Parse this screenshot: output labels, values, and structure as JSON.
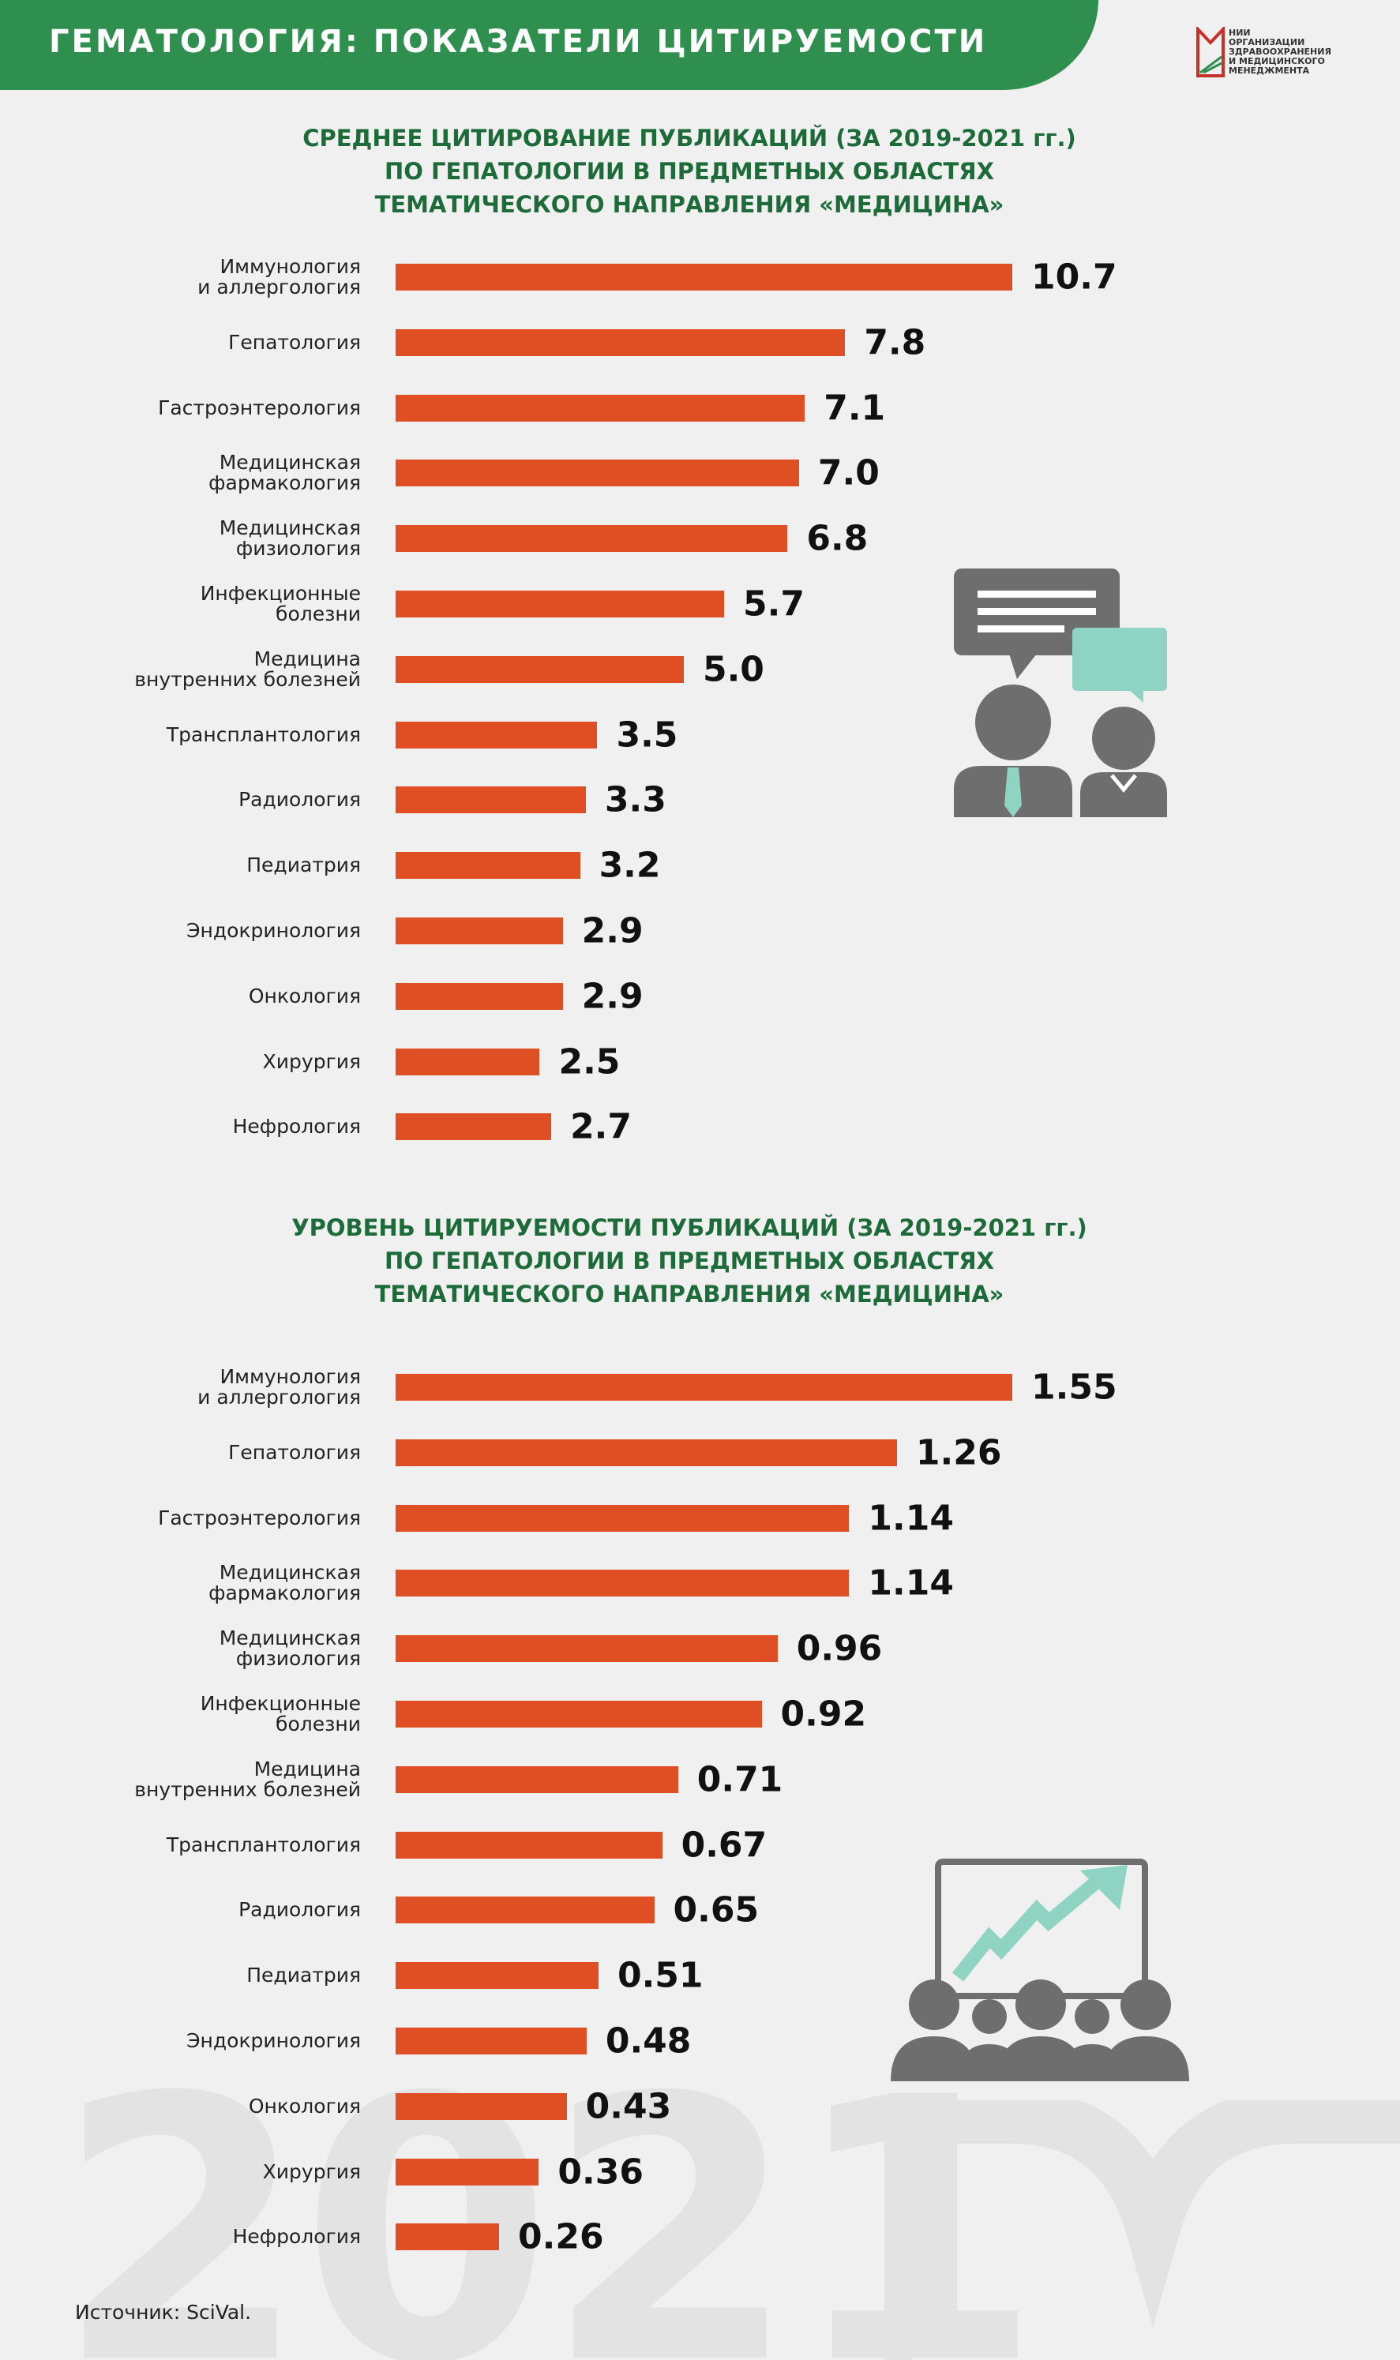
{
  "header": {
    "title": "ГЕМАТОЛОГИЯ: ПОКАЗАТЕЛИ ЦИТИРУЕМОСТИ",
    "logo": [
      "НИИ",
      "ОРГАНИЗАЦИИ",
      "ЗДРАВООХРАНЕНИЯ",
      "И МЕДИЦИНСКОГО",
      "МЕНЕДЖМЕНТА"
    ]
  },
  "chart_data": [
    {
      "type": "bar",
      "orientation": "horizontal",
      "title": "СРЕДНЕЕ ЦИТИРОВАНИЕ ПУБЛИКАЦИЙ (ЗА 2019-2021 гг.)\nПО ГЕПАТОЛОГИИ В ПРЕДМЕТНЫХ ОБЛАСТЯХ\nТЕМАТИЧЕСКОГО НАПРАВЛЕНИЯ «МЕДИЦИНА»",
      "categories": [
        "Иммунология\nи аллергология",
        "Гепатология",
        "Гастроэнтерология",
        "Медицинская\nфармакология",
        "Медицинская\nфизиология",
        "Инфекционные\nболезни",
        "Медицина\nвнутренних болезней",
        "Трансплантология",
        "Радиология",
        "Педиатрия",
        "Эндокринология",
        "Онкология",
        "Хирургия",
        "Нефрология"
      ],
      "values": [
        10.7,
        7.8,
        7.1,
        7.0,
        6.8,
        5.7,
        5.0,
        3.5,
        3.3,
        3.2,
        2.9,
        2.9,
        2.5,
        2.7
      ],
      "value_labels": [
        "10.7",
        "7.8",
        "7.1",
        "7.0",
        "6.8",
        "5.7",
        "5.0",
        "3.5",
        "3.3",
        "3.2",
        "2.9",
        "2.9",
        "2.5",
        "2.7"
      ],
      "color": "#e04e24"
    },
    {
      "type": "bar",
      "orientation": "horizontal",
      "title": "УРОВЕНЬ ЦИТИРУЕМОСТИ ПУБЛИКАЦИЙ (ЗА 2019-2021 гг.)\nПО ГЕПАТОЛОГИИ В ПРЕДМЕТНЫХ ОБЛАСТЯХ\nТЕМАТИЧЕСКОГО НАПРАВЛЕНИЯ «МЕДИЦИНА»",
      "categories": [
        "Иммунология\nи аллергология",
        "Гепатология",
        "Гастроэнтерология",
        "Медицинская\nфармакология",
        "Медицинская\nфизиология",
        "Инфекционные\nболезни",
        "Медицина\nвнутренних болезней",
        "Трансплантология",
        "Радиология",
        "Педиатрия",
        "Эндокринология",
        "Онкология",
        "Хирургия",
        "Нефрология"
      ],
      "values": [
        1.55,
        1.26,
        1.14,
        1.14,
        0.96,
        0.92,
        0.71,
        0.67,
        0.65,
        0.51,
        0.48,
        0.43,
        0.36,
        0.26
      ],
      "value_labels": [
        "1.55",
        "1.26",
        "1.14",
        "1.14",
        "0.96",
        "0.92",
        "0.71",
        "0.67",
        "0.65",
        "0.51",
        "0.48",
        "0.43",
        "0.36",
        "0.26"
      ],
      "color": "#e04e24"
    }
  ],
  "watermark": "2021",
  "source": "Источник: SciVal."
}
